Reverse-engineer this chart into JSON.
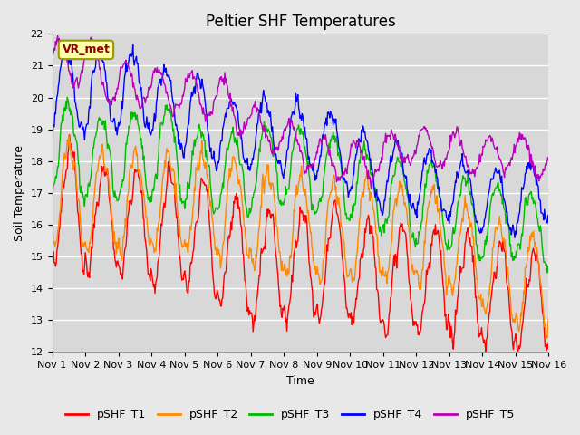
{
  "title": "Peltier SHF Temperatures",
  "xlabel": "Time",
  "ylabel": "Soil Temperature",
  "ylim": [
    12.0,
    22.0
  ],
  "yticks": [
    12.0,
    13.0,
    14.0,
    15.0,
    16.0,
    17.0,
    18.0,
    19.0,
    20.0,
    21.0,
    22.0
  ],
  "xtick_labels": [
    "Nov 1",
    "Nov 2",
    "Nov 3",
    "Nov 4",
    "Nov 5",
    "Nov 6",
    "Nov 7",
    "Nov 8",
    "Nov 9",
    "Nov 10",
    "Nov 11",
    "Nov 12",
    "Nov 13",
    "Nov 14",
    "Nov 15",
    "Nov 16"
  ],
  "series_colors": [
    "#ff0000",
    "#ff8800",
    "#00bb00",
    "#0000ff",
    "#bb00bb"
  ],
  "series_names": [
    "pSHF_T1",
    "pSHF_T2",
    "pSHF_T3",
    "pSHF_T4",
    "pSHF_T5"
  ],
  "annotation_text": "VR_met",
  "fig_facecolor": "#e8e8e8",
  "ax_facecolor": "#d8d8d8",
  "title_fontsize": 12,
  "axis_fontsize": 9,
  "tick_fontsize": 8,
  "legend_fontsize": 9,
  "line_width": 1.0,
  "n_points": 720,
  "days": 15
}
